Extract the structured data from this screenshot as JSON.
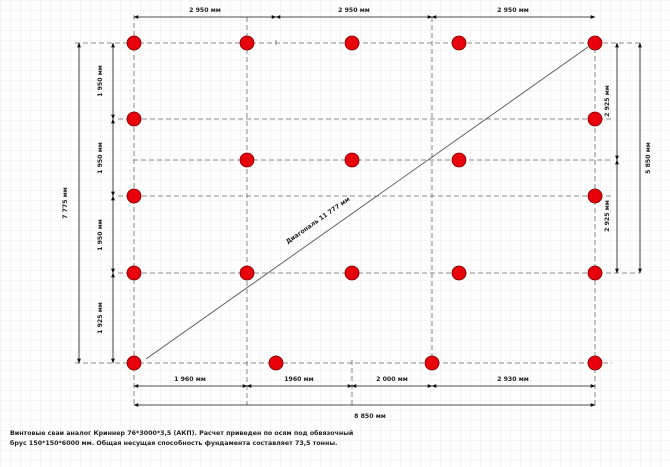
{
  "dimensions": {
    "top": [
      "2 950 мм",
      "2 950 мм",
      "2 950 мм"
    ],
    "bottom": [
      "1 960 мм",
      "1960 мм",
      "2 000 мм",
      "2 930 мм"
    ],
    "total_width": "8 850 мм",
    "left_inner": [
      "1 950 мм",
      "1 950 мм",
      "1 950 мм",
      "1 925 мм"
    ],
    "left_total": "7 775 мм",
    "right_inner": [
      "2 925 мм",
      "2 925 мм"
    ],
    "right_total": "5 850 мм",
    "diagonal": "Диагональ 11 777 мм"
  },
  "caption": {
    "line1": "Винтовые сваи аналог Криннер 76*3000*3,5 (АКП). Расчет приведен по осям под обвязочный",
    "line2": "брус 150*150*6000 мм. Общая несущая способность фундамента составляет 73,5 тонны."
  },
  "colors": {
    "pile": "#e8000b",
    "grid_line": "#d9d9d9",
    "axis_line": "#666666",
    "dim_line": "#111111"
  }
}
